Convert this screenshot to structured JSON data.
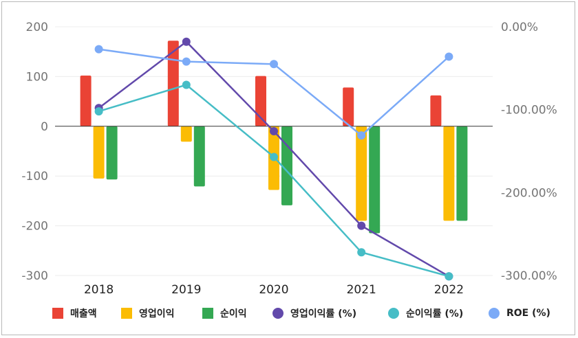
{
  "chart_data": {
    "type": "bar",
    "categories": [
      "2018",
      "2019",
      "2020",
      "2021",
      "2022"
    ],
    "left_axis": {
      "ticks": [
        "200",
        "100",
        "0",
        "-100",
        "-200",
        "-300"
      ],
      "ylim": [
        -300,
        200
      ]
    },
    "right_axis": {
      "ticks": [
        "0.00%",
        "-100.00%",
        "-200.00%",
        "-300.00%"
      ],
      "ylim": [
        -300,
        0
      ]
    },
    "grid": true,
    "legend_position": "bottom",
    "series": [
      {
        "name": "매출액",
        "kind": "bar",
        "axis": "left",
        "color": "#ea4335",
        "values": [
          102,
          172,
          101,
          78,
          62
        ]
      },
      {
        "name": "영업이익",
        "kind": "bar",
        "axis": "left",
        "color": "#fbbc04",
        "values": [
          -105,
          -31,
          -128,
          -190,
          -190
        ]
      },
      {
        "name": "순이익",
        "kind": "bar",
        "axis": "left",
        "color": "#34a853",
        "values": [
          -107,
          -121,
          -159,
          -215,
          -190
        ]
      },
      {
        "name": "영업이익률 (%)",
        "kind": "line",
        "axis": "right",
        "color": "#6249ab",
        "values": [
          -98,
          -18,
          -126,
          -240,
          -301
        ]
      },
      {
        "name": "순이익률 (%)",
        "kind": "line",
        "axis": "right",
        "color": "#46bdc6",
        "values": [
          -102,
          -70,
          -157,
          -272,
          -301
        ]
      },
      {
        "name": "ROE (%)",
        "kind": "line",
        "axis": "right",
        "color": "#7baaf7",
        "values": [
          -27,
          -42,
          -45,
          -131,
          -36
        ]
      }
    ]
  }
}
